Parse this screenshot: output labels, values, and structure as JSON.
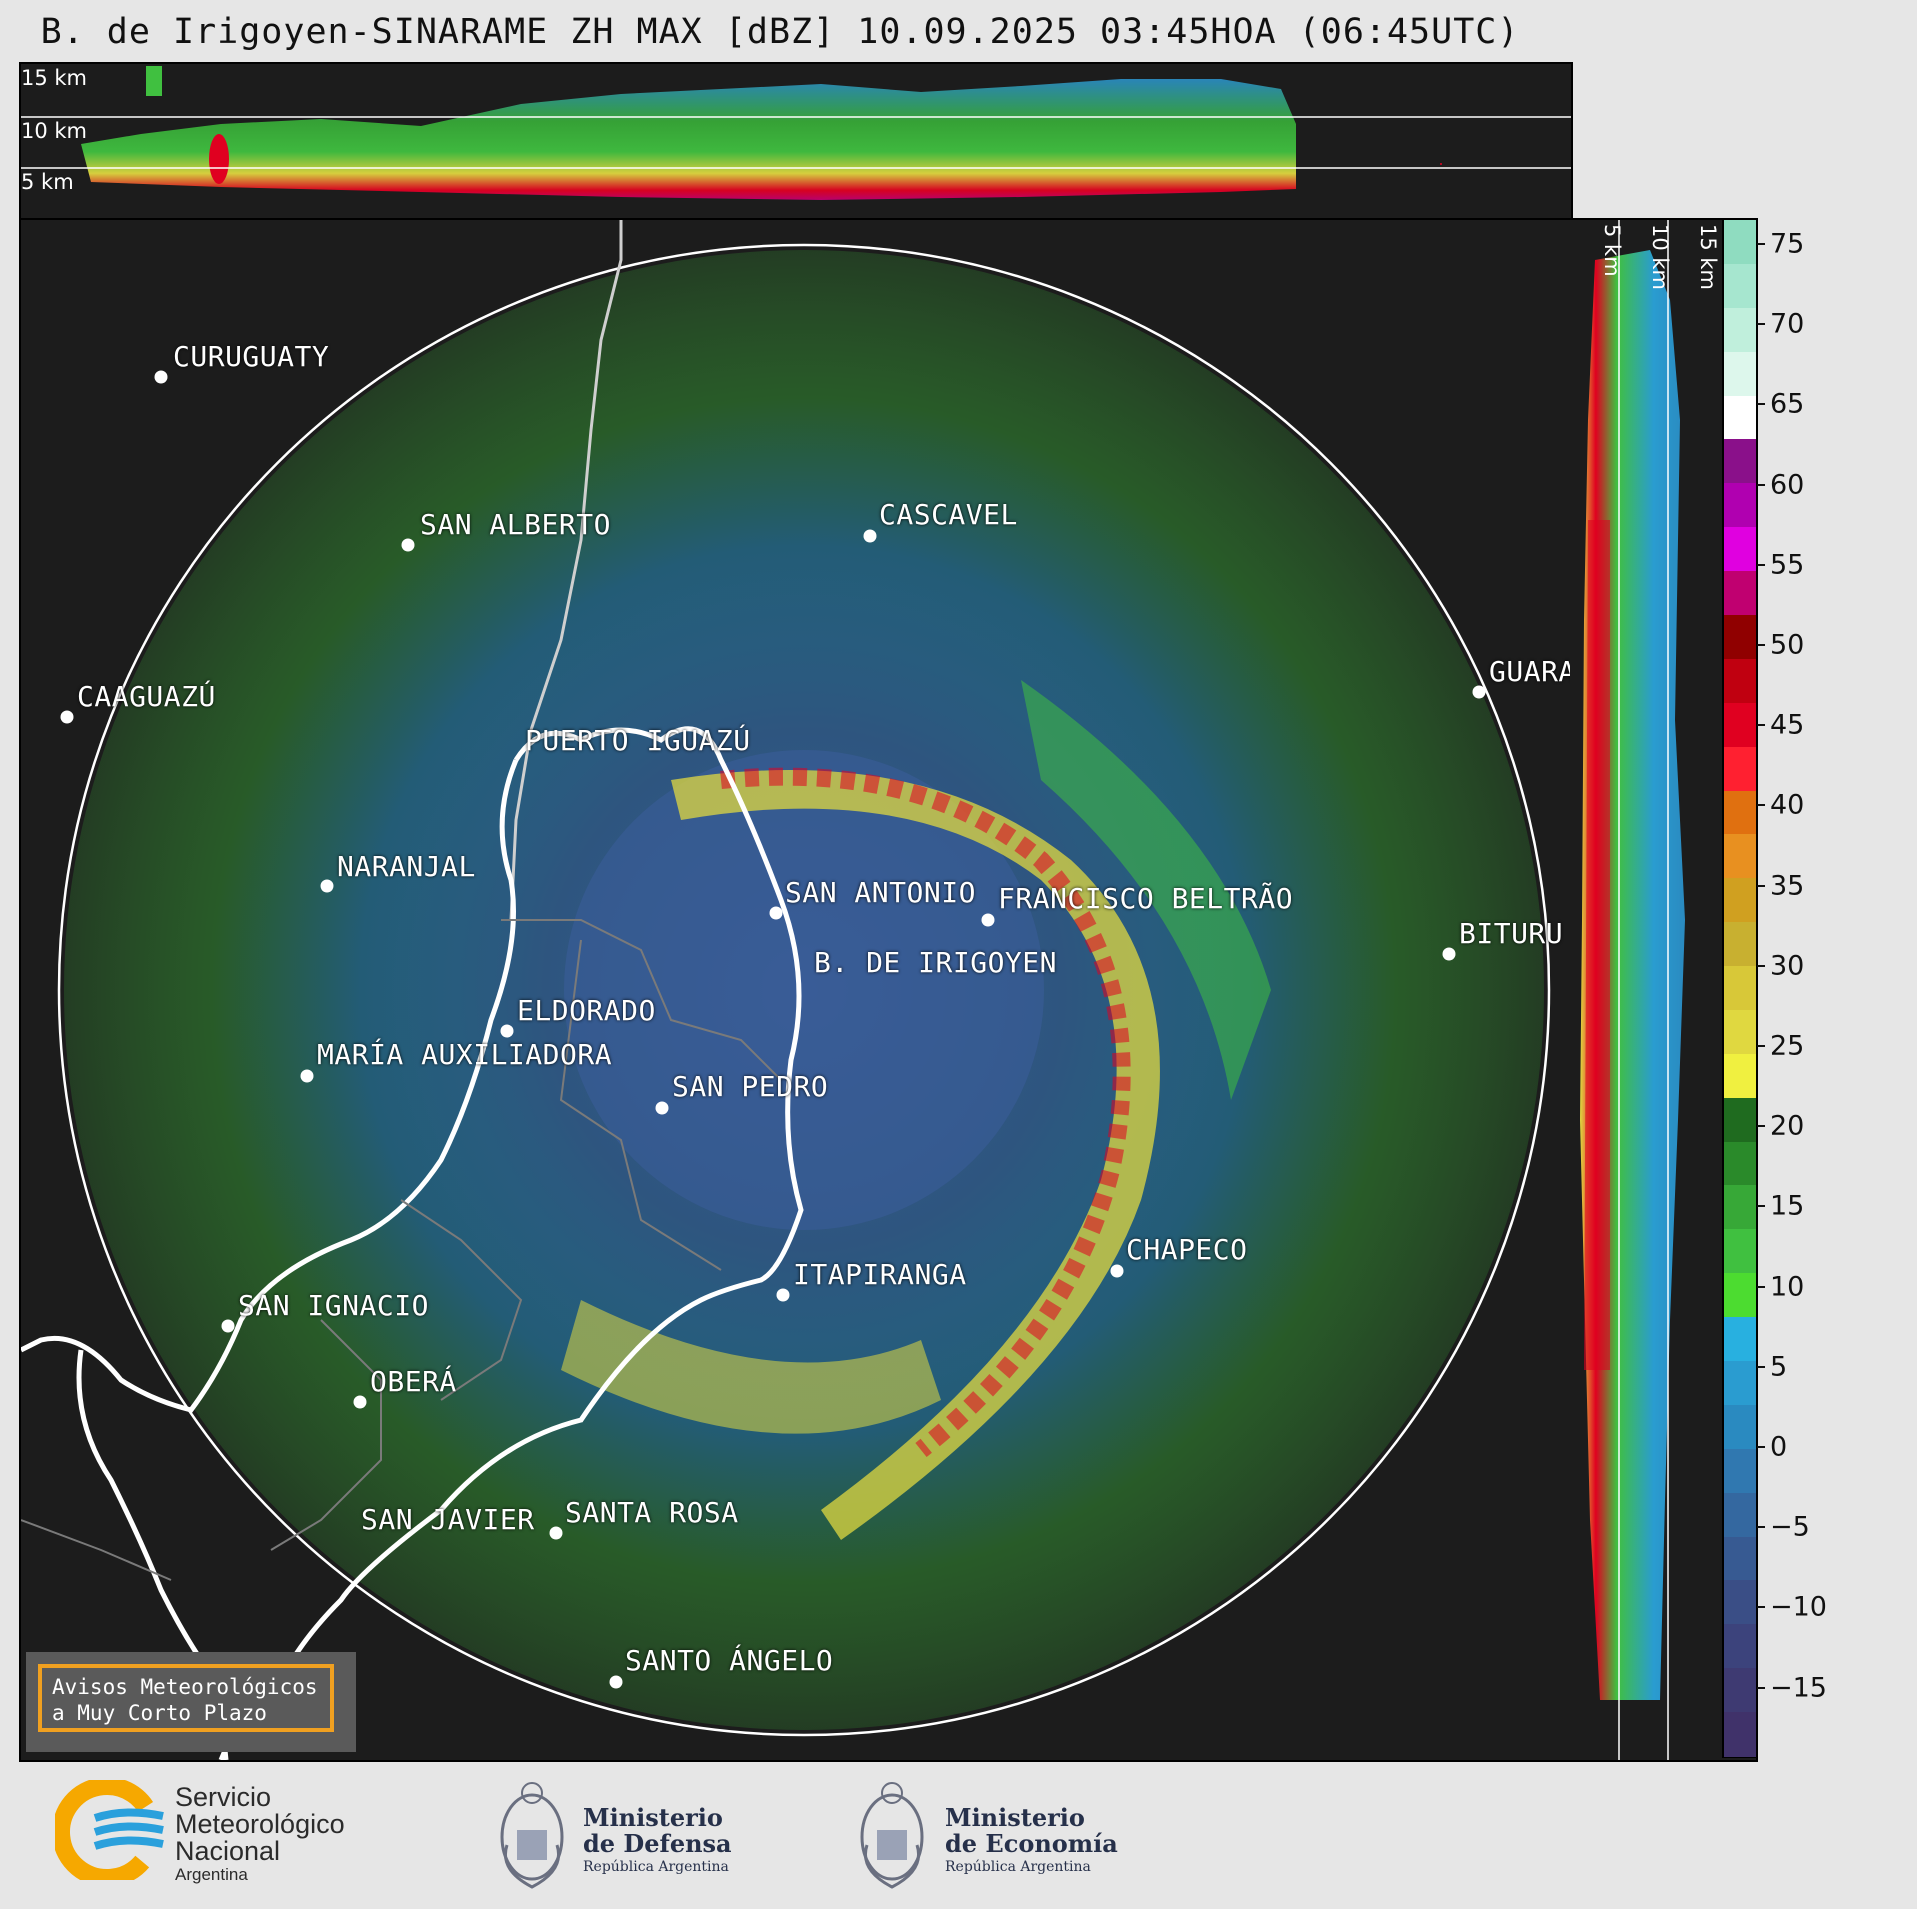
{
  "title": "B. de Irigoyen-SINARAME ZH MAX [dBZ] 10.09.2025 03:45HOA (06:45UTC)",
  "top_panel": {
    "height_labels": [
      "15 km",
      "10 km",
      "5 km"
    ]
  },
  "side_panel": {
    "height_labels": [
      "5 km",
      "10 km",
      "15 km"
    ]
  },
  "colorbar": {
    "ticks": [
      "75",
      "70",
      "65",
      "60",
      "55",
      "50",
      "45",
      "40",
      "35",
      "30",
      "25",
      "20",
      "15",
      "10",
      "5",
      "0",
      "−5",
      "−10",
      "−15"
    ],
    "bands": [
      "#8fdcc0",
      "#a6e6cf",
      "#c0efdc",
      "#ddf7ec",
      "#ffffff",
      "#8a108a",
      "#b000b0",
      "#e000e0",
      "#c00070",
      "#900000",
      "#c00010",
      "#e00020",
      "#ff2030",
      "#e07010",
      "#e89020",
      "#d0a020",
      "#c8b030",
      "#d8c838",
      "#e0d840",
      "#f0f040",
      "#1f6b1f",
      "#2a8a2a",
      "#37a837",
      "#40c040",
      "#4cdc30",
      "#28b0e0",
      "#2a9cd0",
      "#2a8ac0",
      "#3078b0",
      "#3468a0",
      "#375a92",
      "#3a4e86",
      "#3c437c",
      "#3e3a72",
      "#40326a"
    ]
  },
  "cities": [
    {
      "name": "CURUGUATY"
    },
    {
      "name": "SAN ALBERTO"
    },
    {
      "name": "CAAGUAZÚ"
    },
    {
      "name": "CASCAVEL"
    },
    {
      "name": "GUARA"
    },
    {
      "name": "PUERTO IGUAZÚ"
    },
    {
      "name": "NARANJAL"
    },
    {
      "name": "SAN ANTONIO"
    },
    {
      "name": "FRANCISCO BELTRÃO"
    },
    {
      "name": "BITURU"
    },
    {
      "name": "B. DE IRIGOYEN"
    },
    {
      "name": "ELDORADO"
    },
    {
      "name": "MARÍA AUXILIADORA"
    },
    {
      "name": "SAN PEDRO"
    },
    {
      "name": "CHAPECO"
    },
    {
      "name": "ITAPIRANGA"
    },
    {
      "name": "SAN IGNACIO"
    },
    {
      "name": "OBERÁ"
    },
    {
      "name": "SAN JAVIER"
    },
    {
      "name": "SANTA ROSA"
    },
    {
      "name": "SANTO ÁNGELO"
    }
  ],
  "avisos": {
    "line1": "Avisos Meteorológicos",
    "line2": "a Muy Corto Plazo"
  },
  "logos": {
    "smn": {
      "line1": "Servicio",
      "line2": "Meteorológico",
      "line3": "Nacional",
      "line4": "Argentina"
    },
    "defensa": {
      "line1": "Ministerio",
      "line2": "de Defensa",
      "line3": "República Argentina"
    },
    "economia": {
      "line1": "Ministerio",
      "line2": "de Economía",
      "line3": "República Argentina"
    }
  }
}
